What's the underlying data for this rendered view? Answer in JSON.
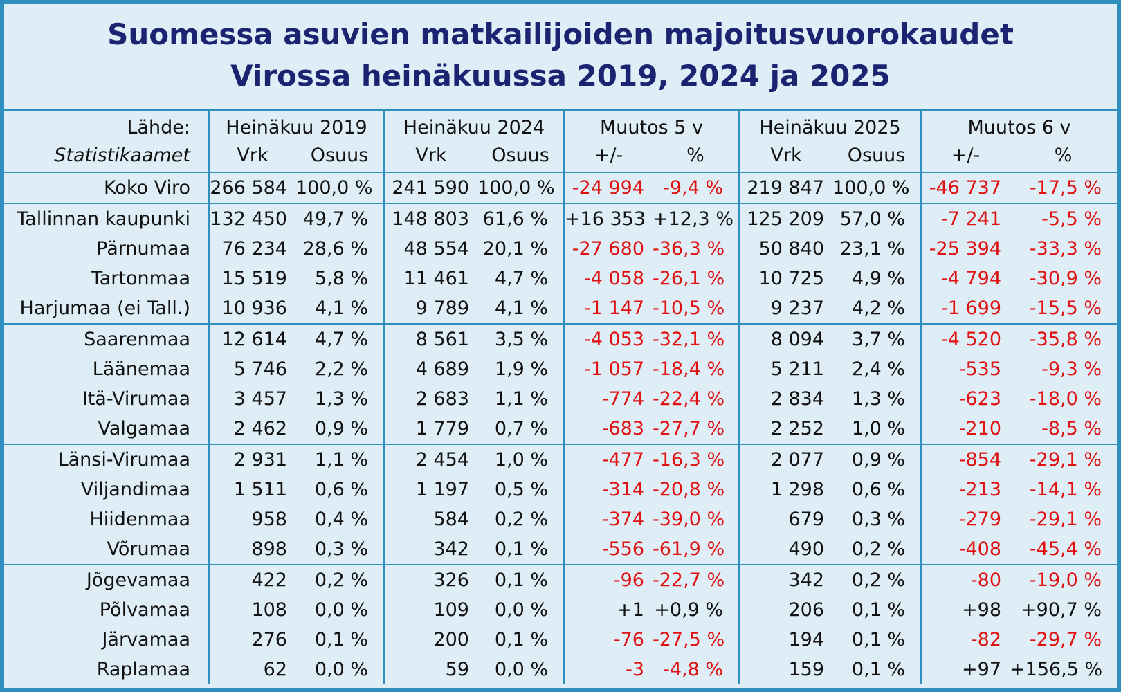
{
  "title": {
    "line1": "Suomessa asuvien matkailijoiden majoitusvuorokaudet",
    "line2": "Virossa heinäkuussa 2019, 2024 ja 2025"
  },
  "header": {
    "source_label": "Lähde:",
    "source_name": "Statistikaamet",
    "groups": [
      "Heinäkuu 2019",
      "Heinäkuu 2024",
      "Muutos 5 v",
      "Heinäkuu 2025",
      "Muutos 6 v"
    ],
    "sub_vrk": "Vrk",
    "sub_osuus": "Osuus",
    "sub_plusminus": "+/-",
    "sub_percent": "%"
  },
  "colors": {
    "border": "#2f8fbf",
    "background": "#dfeef6",
    "title": "#1a2470",
    "negative": "#e01010"
  },
  "rows": [
    {
      "region": "Koko Viro",
      "vrk2019": "266 584",
      "os2019": "100,0 %",
      "vrk2024": "241 590",
      "os2024": "100,0 %",
      "m5": "-24 994",
      "m5p": "-9,4 %",
      "vrk2025": "219 847",
      "os2025": "100,0 %",
      "m6": "-46 737",
      "m6p": "-17,5 %"
    },
    {
      "region": "Tallinnan kaupunki",
      "vrk2019": "132 450",
      "os2019": "49,7 %",
      "vrk2024": "148 803",
      "os2024": "61,6 %",
      "m5": "+16 353",
      "m5p": "+12,3 %",
      "vrk2025": "125 209",
      "os2025": "57,0 %",
      "m6": "-7 241",
      "m6p": "-5,5 %"
    },
    {
      "region": "Pärnumaa",
      "vrk2019": "76 234",
      "os2019": "28,6 %",
      "vrk2024": "48 554",
      "os2024": "20,1 %",
      "m5": "-27 680",
      "m5p": "-36,3 %",
      "vrk2025": "50 840",
      "os2025": "23,1 %",
      "m6": "-25 394",
      "m6p": "-33,3 %"
    },
    {
      "region": "Tartonmaa",
      "vrk2019": "15 519",
      "os2019": "5,8 %",
      "vrk2024": "11 461",
      "os2024": "4,7 %",
      "m5": "-4 058",
      "m5p": "-26,1 %",
      "vrk2025": "10 725",
      "os2025": "4,9 %",
      "m6": "-4 794",
      "m6p": "-30,9 %"
    },
    {
      "region": "Harjumaa (ei Tall.)",
      "vrk2019": "10 936",
      "os2019": "4,1 %",
      "vrk2024": "9 789",
      "os2024": "4,1 %",
      "m5": "-1 147",
      "m5p": "-10,5 %",
      "vrk2025": "9 237",
      "os2025": "4,2 %",
      "m6": "-1 699",
      "m6p": "-15,5 %"
    },
    {
      "region": "Saarenmaa",
      "vrk2019": "12 614",
      "os2019": "4,7 %",
      "vrk2024": "8 561",
      "os2024": "3,5 %",
      "m5": "-4 053",
      "m5p": "-32,1 %",
      "vrk2025": "8 094",
      "os2025": "3,7 %",
      "m6": "-4 520",
      "m6p": "-35,8 %"
    },
    {
      "region": "Läänemaa",
      "vrk2019": "5 746",
      "os2019": "2,2 %",
      "vrk2024": "4 689",
      "os2024": "1,9 %",
      "m5": "-1 057",
      "m5p": "-18,4 %",
      "vrk2025": "5 211",
      "os2025": "2,4 %",
      "m6": "-535",
      "m6p": "-9,3 %"
    },
    {
      "region": "Itä-Virumaa",
      "vrk2019": "3 457",
      "os2019": "1,3 %",
      "vrk2024": "2 683",
      "os2024": "1,1 %",
      "m5": "-774",
      "m5p": "-22,4 %",
      "vrk2025": "2 834",
      "os2025": "1,3 %",
      "m6": "-623",
      "m6p": "-18,0 %"
    },
    {
      "region": "Valgamaa",
      "vrk2019": "2 462",
      "os2019": "0,9 %",
      "vrk2024": "1 779",
      "os2024": "0,7 %",
      "m5": "-683",
      "m5p": "-27,7 %",
      "vrk2025": "2 252",
      "os2025": "1,0 %",
      "m6": "-210",
      "m6p": "-8,5 %"
    },
    {
      "region": "Länsi-Virumaa",
      "vrk2019": "2 931",
      "os2019": "1,1 %",
      "vrk2024": "2 454",
      "os2024": "1,0 %",
      "m5": "-477",
      "m5p": "-16,3 %",
      "vrk2025": "2 077",
      "os2025": "0,9 %",
      "m6": "-854",
      "m6p": "-29,1 %"
    },
    {
      "region": "Viljandimaa",
      "vrk2019": "1 511",
      "os2019": "0,6 %",
      "vrk2024": "1 197",
      "os2024": "0,5 %",
      "m5": "-314",
      "m5p": "-20,8 %",
      "vrk2025": "1 298",
      "os2025": "0,6 %",
      "m6": "-213",
      "m6p": "-14,1 %"
    },
    {
      "region": "Hiidenmaa",
      "vrk2019": "958",
      "os2019": "0,4 %",
      "vrk2024": "584",
      "os2024": "0,2 %",
      "m5": "-374",
      "m5p": "-39,0 %",
      "vrk2025": "679",
      "os2025": "0,3 %",
      "m6": "-279",
      "m6p": "-29,1 %"
    },
    {
      "region": "Võrumaa",
      "vrk2019": "898",
      "os2019": "0,3 %",
      "vrk2024": "342",
      "os2024": "0,1 %",
      "m5": "-556",
      "m5p": "-61,9 %",
      "vrk2025": "490",
      "os2025": "0,2 %",
      "m6": "-408",
      "m6p": "-45,4 %"
    },
    {
      "region": "Jõgevamaa",
      "vrk2019": "422",
      "os2019": "0,2 %",
      "vrk2024": "326",
      "os2024": "0,1 %",
      "m5": "-96",
      "m5p": "-22,7 %",
      "vrk2025": "342",
      "os2025": "0,2 %",
      "m6": "-80",
      "m6p": "-19,0 %"
    },
    {
      "region": "Põlvamaa",
      "vrk2019": "108",
      "os2019": "0,0 %",
      "vrk2024": "109",
      "os2024": "0,0 %",
      "m5": "+1",
      "m5p": "+0,9 %",
      "vrk2025": "206",
      "os2025": "0,1 %",
      "m6": "+98",
      "m6p": "+90,7 %"
    },
    {
      "region": "Järvamaa",
      "vrk2019": "276",
      "os2019": "0,1 %",
      "vrk2024": "200",
      "os2024": "0,1 %",
      "m5": "-76",
      "m5p": "-27,5 %",
      "vrk2025": "194",
      "os2025": "0,1 %",
      "m6": "-82",
      "m6p": "-29,7 %"
    },
    {
      "region": "Raplamaa",
      "vrk2019": "62",
      "os2019": "0,0 %",
      "vrk2024": "59",
      "os2024": "0,0 %",
      "m5": "-3",
      "m5p": "-4,8 %",
      "vrk2025": "159",
      "os2025": "0,1 %",
      "m6": "+97",
      "m6p": "+156,5 %"
    }
  ]
}
